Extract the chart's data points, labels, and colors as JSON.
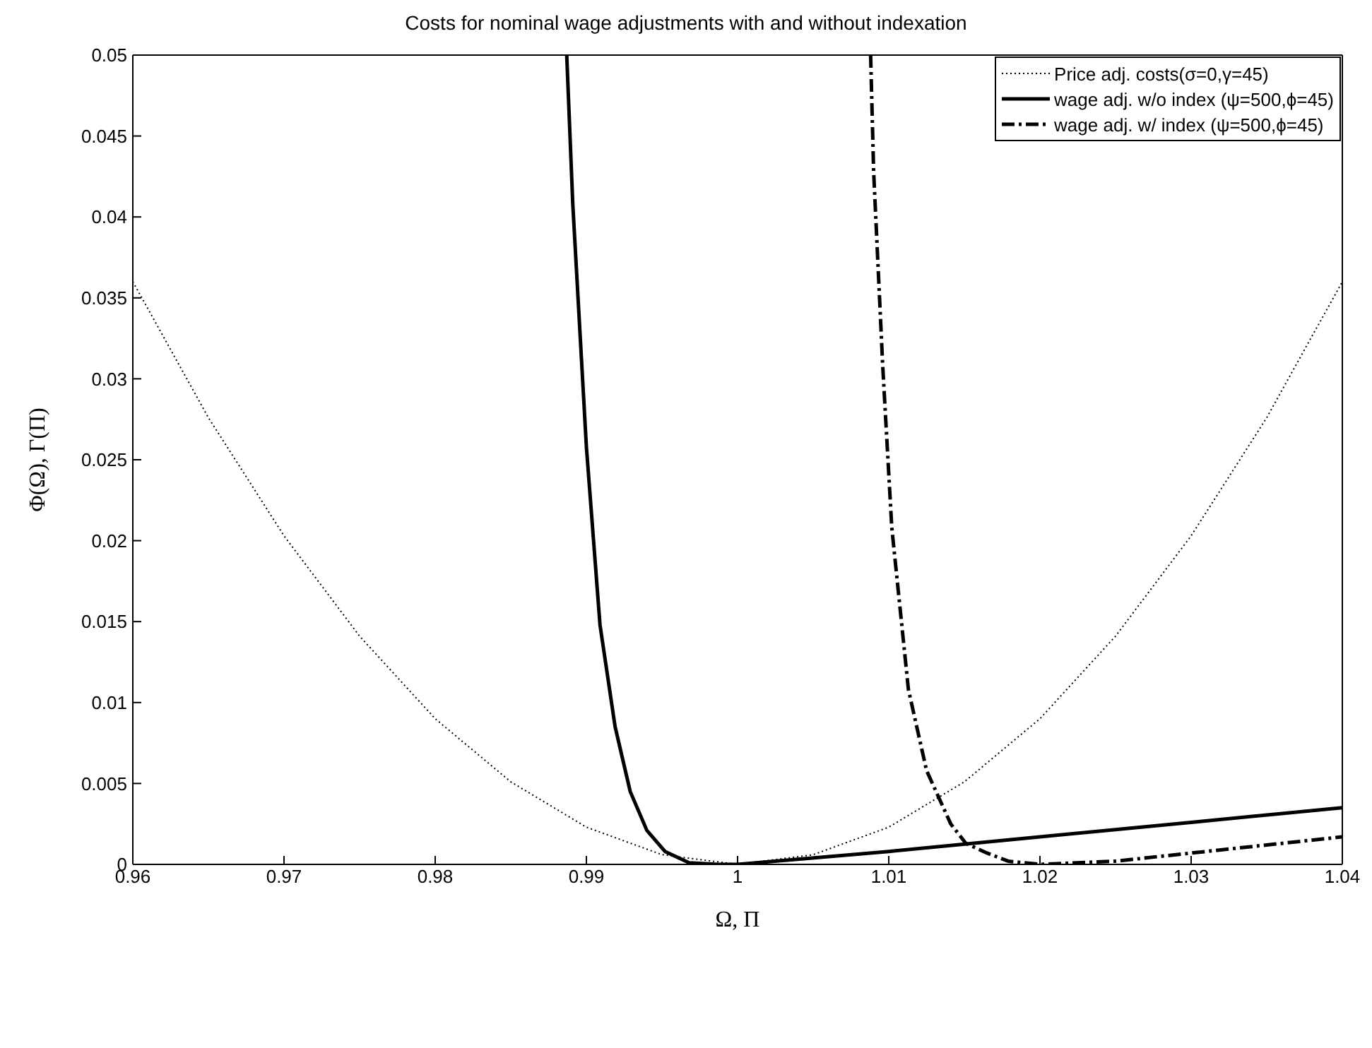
{
  "chart_data": {
    "type": "line",
    "title": "Costs for nominal wage adjustments with and without indexation",
    "xlabel": "Ω, Π",
    "ylabel": "Φ(Ω), Γ(Π)",
    "xlim": [
      0.96,
      1.04
    ],
    "xticks": [
      0.96,
      0.97,
      0.98,
      0.99,
      1,
      1.01,
      1.02,
      1.03,
      1.04
    ],
    "ylim": [
      0,
      0.05
    ],
    "yticks": [
      0,
      0.005,
      0.01,
      0.015,
      0.02,
      0.025,
      0.03,
      0.035,
      0.04,
      0.045,
      0.05
    ],
    "legend": "top right",
    "marker": "none",
    "series": [
      {
        "name": "Price adj. costs(σ=0,γ=45)",
        "color": "#000000",
        "line_style": "dotted",
        "x": [
          0.96,
          0.965,
          0.97,
          0.975,
          0.98,
          0.985,
          0.99,
          0.995,
          1,
          1.005,
          1.01,
          1.015,
          1.02,
          1.025,
          1.03,
          1.035,
          1.04
        ],
        "values": [
          0.036,
          0.0276,
          0.0203,
          0.0141,
          0.009,
          0.0051,
          0.0023,
          0.0006,
          0,
          0.0006,
          0.0023,
          0.0051,
          0.009,
          0.0141,
          0.0203,
          0.0276,
          0.036
        ]
      },
      {
        "name": "wage adj. w/o index (ψ=500,ϕ=45)",
        "color": "#000000",
        "line_style": "solid",
        "x": [
          0.9887,
          0.9891,
          0.99,
          0.9909,
          0.9919,
          0.9929,
          0.994,
          0.9952,
          0.9968,
          0.9987,
          1,
          1.01,
          1.02,
          1.03,
          1.04
        ],
        "values": [
          0.05,
          0.0408,
          0.0258,
          0.0148,
          0.0085,
          0.0045,
          0.0021,
          0.0008,
          0.0001,
          0,
          0,
          0.0008,
          0.0017,
          0.0026,
          0.0035
        ]
      },
      {
        "name": "wage adj. w/ index (ψ=500,ϕ=45)",
        "color": "#000000",
        "line_style": "dashdot",
        "x": [
          1.0088,
          1.009,
          1.0096,
          1.0102,
          1.0113,
          1.0125,
          1.0141,
          1.0151,
          1.0165,
          1.0179,
          1.02,
          1.025,
          1.03,
          1.035,
          1.04
        ],
        "values": [
          0.05,
          0.0428,
          0.0308,
          0.0208,
          0.0108,
          0.0058,
          0.0025,
          0.0013,
          0.0007,
          0.0002,
          0,
          0.0002,
          0.0007,
          0.0012,
          0.0017
        ]
      }
    ]
  }
}
